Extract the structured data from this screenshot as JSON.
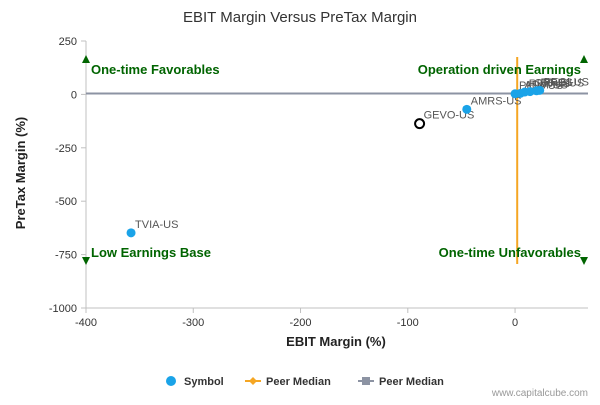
{
  "chart_data": {
    "type": "scatter",
    "title": "EBIT Margin Versus PreTax Margin",
    "xlabel": "EBIT Margin (%)",
    "ylabel": "PreTax Margin (%)",
    "xlim": [
      -400,
      68
    ],
    "ylim": [
      -1000,
      250
    ],
    "x_ticks": [
      -400,
      -300,
      -200,
      -100,
      0
    ],
    "y_ticks": [
      250,
      0,
      -250,
      -500,
      -750,
      -1000
    ],
    "grid": false,
    "legend_position": "bottom-center",
    "quadrant_labels": {
      "top_left": "One-time Favorables",
      "top_right": "Operation driven Earnings",
      "bottom_left": "Low Earnings Base",
      "bottom_right": "One-time Unfavorables"
    },
    "peer_median": {
      "x": 2,
      "y": 4
    },
    "colors": {
      "symbol": "#1aa3e8",
      "highlight_stroke": "#000000",
      "peer_median_x": "#f5a623",
      "peer_median_y": "#8c93a3",
      "quadrant_arrow": "#006400"
    },
    "series": [
      {
        "name": "Symbol",
        "points": [
          {
            "label": "TVIA-US",
            "x": -358,
            "y": -648
          },
          {
            "label": "GEVO-US",
            "x": -89,
            "y": -137,
            "highlight": true
          },
          {
            "label": "AMRS-US",
            "x": -45,
            "y": -70
          },
          {
            "label": "PEIX-US",
            "x": 0,
            "y": 3
          },
          {
            "label": "ADM-US",
            "x": 5,
            "y": 5
          },
          {
            "label": "REX-US",
            "x": 9,
            "y": 11
          },
          {
            "label": "GPRE-US",
            "x": 14,
            "y": 13
          },
          {
            "label": "FF-US",
            "x": 20,
            "y": 17
          },
          {
            "label": "PEGI-US",
            "x": 23,
            "y": 19
          }
        ]
      }
    ],
    "legend": [
      {
        "label": "Symbol",
        "kind": "circle"
      },
      {
        "label": "Peer Median",
        "kind": "diamond-line"
      },
      {
        "label": "Peer Median",
        "kind": "square-line"
      }
    ]
  },
  "footer": {
    "credit": "www.capitalcube.com"
  }
}
